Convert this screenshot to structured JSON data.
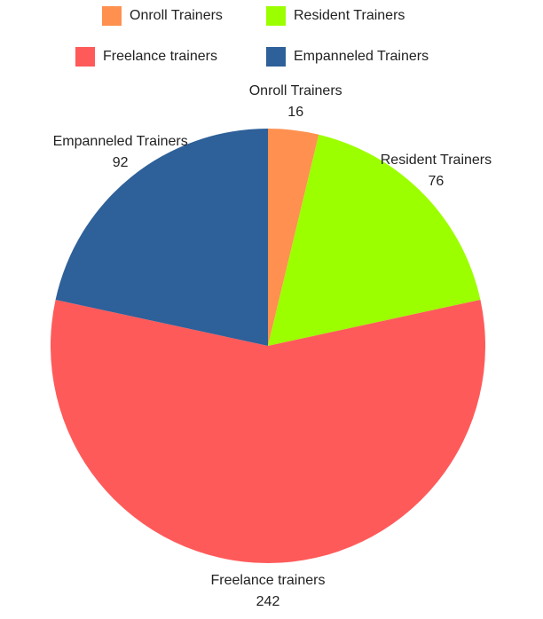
{
  "chart_data": {
    "type": "pie",
    "categories": [
      "Onroll Trainers",
      "Resident Trainers",
      "Freelance trainers",
      "Empanneled Trainers"
    ],
    "values": [
      16,
      76,
      242,
      92
    ],
    "colors": [
      "#ff9050",
      "#9cff00",
      "#ff5a5a",
      "#2e6099"
    ],
    "legend": "top"
  }
}
